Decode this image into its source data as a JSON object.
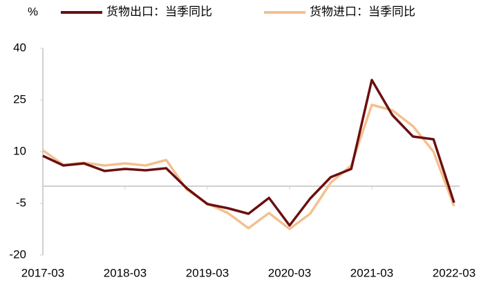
{
  "chart_data": {
    "type": "line",
    "y_unit": "%",
    "categories": [
      "2017-03",
      null,
      null,
      null,
      "2018-03",
      null,
      null,
      null,
      "2019-03",
      null,
      null,
      null,
      "2020-03",
      null,
      null,
      null,
      "2021-03",
      null,
      null,
      null,
      "2022-03"
    ],
    "series": [
      {
        "name": "货物出口：当季同比",
        "color": "#6b0f0f",
        "values": [
          8.8,
          6,
          6.6,
          4.4,
          5,
          4.6,
          5.2,
          -0.6,
          -5.2,
          -6.4,
          -8,
          -3.4,
          -11.4,
          -3.6,
          2.6,
          5,
          30.8,
          20.6,
          14.4,
          13.6,
          -4.8
        ]
      },
      {
        "name": "货物进口：当季同比",
        "color": "#f4bf8e",
        "values": [
          10.4,
          6.2,
          6.8,
          6,
          6.6,
          6,
          7.6,
          -1,
          -5,
          -7.8,
          -12.2,
          -7.8,
          -12.4,
          -8,
          1,
          6,
          23.6,
          22,
          17.4,
          10,
          -5.8
        ]
      }
    ],
    "ylim": [
      -20,
      40
    ],
    "yticks": [
      -20,
      -5,
      10,
      25,
      40
    ]
  }
}
